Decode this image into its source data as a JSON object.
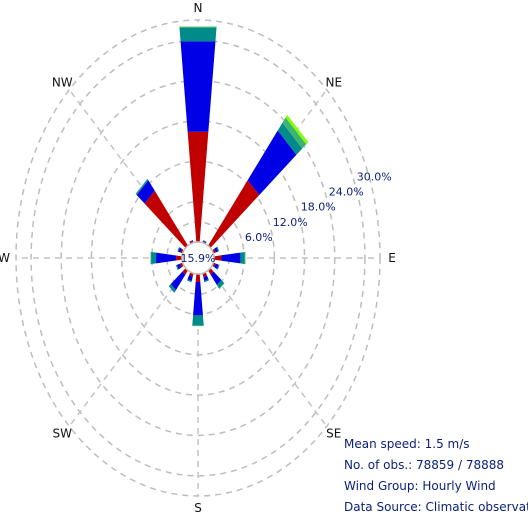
{
  "chart_data": {
    "type": "windrose",
    "title": "",
    "directions": [
      "N",
      "NNE",
      "NE",
      "ENE",
      "E",
      "ESE",
      "SE",
      "SSE",
      "S",
      "SSW",
      "SW",
      "WSW",
      "W",
      "WNW",
      "NW",
      "NNW"
    ],
    "compass_labels": [
      "N",
      "NE",
      "E",
      "SE",
      "S",
      "SW",
      "W",
      "NW"
    ],
    "ring_values": [
      6,
      12,
      18,
      24,
      30
    ],
    "ring_labels": [
      "6.0%",
      "12.0%",
      "18.0%",
      "24.0%",
      "30.0%"
    ],
    "calm_percent_label": "15.9%",
    "axis_max": 33,
    "series": [
      {
        "color": "#c00000",
        "values": [
          16.5,
          0.2,
          12.5,
          0.5,
          1.5,
          0.5,
          0.8,
          0.6,
          1.2,
          0.5,
          0.8,
          0.6,
          1.2,
          0.5,
          10.5,
          0.3
        ]
      },
      {
        "color": "#0000e6",
        "values": [
          13.5,
          0.1,
          9.5,
          0.5,
          3.8,
          0.6,
          2.0,
          0.6,
          5.0,
          0.7,
          3.0,
          0.6,
          4.0,
          0.4,
          2.0,
          0.1
        ]
      },
      {
        "color": "#008b8b",
        "values": [
          2.0,
          0.1,
          1.5,
          0.2,
          0.8,
          0.2,
          0.7,
          0.2,
          1.5,
          0.2,
          0.5,
          0.2,
          1.0,
          0.2,
          0.2,
          0.0
        ]
      },
      {
        "color": "#3cb371",
        "values": [
          0.2,
          0.0,
          1.0,
          0.0,
          0.2,
          0.0,
          0.1,
          0.0,
          0.1,
          0.0,
          0.0,
          0.0,
          0.1,
          0.0,
          0.1,
          0.0
        ]
      },
      {
        "color": "#7fff00",
        "values": [
          0.0,
          0.0,
          0.5,
          0.0,
          0.0,
          0.0,
          0.0,
          0.0,
          0.0,
          0.0,
          0.0,
          0.0,
          0.0,
          0.0,
          0.0,
          0.0
        ]
      }
    ]
  },
  "info": {
    "mean_speed": "Mean speed: 1.5 m/s",
    "observations": "No. of obs.: 78859 / 78888",
    "wind_group": "Wind Group: Hourly Wind",
    "data_source": "Data Source: Climatic observation"
  }
}
